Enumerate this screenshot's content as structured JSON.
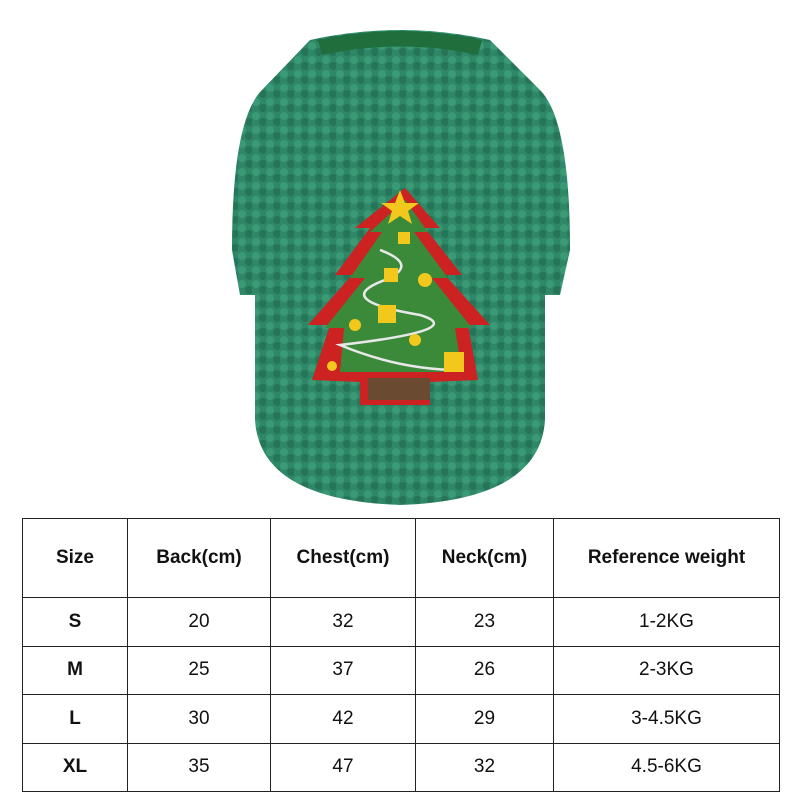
{
  "product": {
    "icon": "christmas-tree-sweater-image",
    "colors": {
      "sweater": "#2f8a68",
      "tree": "#3a8a3a",
      "trim": "#cc2222",
      "star": "#f2c81c",
      "trunk": "#6b4a32"
    }
  },
  "size_table": {
    "headers": [
      "Size",
      "Back(cm)",
      "Chest(cm)",
      "Neck(cm)",
      "Reference weight"
    ],
    "rows": [
      [
        "S",
        "20",
        "32",
        "23",
        "1-2KG"
      ],
      [
        "M",
        "25",
        "37",
        "26",
        "2-3KG"
      ],
      [
        "L",
        "30",
        "42",
        "29",
        "3-4.5KG"
      ],
      [
        "XL",
        "35",
        "47",
        "32",
        "4.5-6KG"
      ]
    ]
  }
}
